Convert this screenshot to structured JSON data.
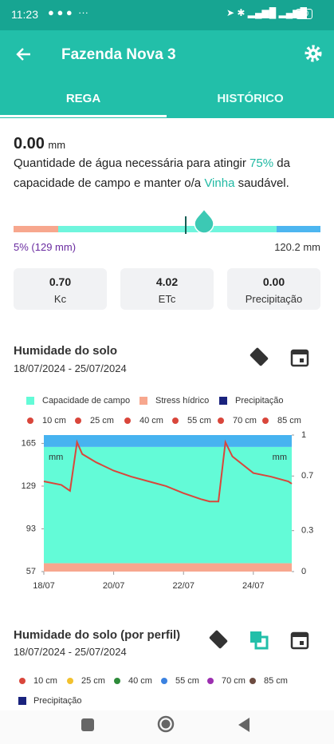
{
  "status_bar": {
    "time": "11:23",
    "battery": "30"
  },
  "header": {
    "title": "Fazenda Nova 3"
  },
  "tabs": [
    "REGA",
    "HISTÓRICO"
  ],
  "summary": {
    "value": "0.00",
    "unit": "mm",
    "text_parts": [
      "Quantidade de água necessária para atingir ",
      "75%",
      " da capacidade de campo e manter o/a ",
      "Vinha",
      " saudável."
    ]
  },
  "slider": {
    "left_label": "5% (129 mm)",
    "right_label": "120.2 mm"
  },
  "stats": [
    {
      "value": "0.70",
      "label": "Kc"
    },
    {
      "value": "4.02",
      "label": "ETc"
    },
    {
      "value": "0.00",
      "label": "Precipitação"
    }
  ],
  "chart_data": {
    "type": "line",
    "title": "Humidade do solo",
    "subtitle": "18/07/2024 - 25/07/2024",
    "x": [
      0,
      0.5,
      0.75,
      0.95,
      1.1,
      1.5,
      2,
      2.5,
      3,
      3.5,
      4,
      4.5,
      4.75,
      5.0,
      5.2,
      5.4,
      6,
      6.5,
      7,
      7.1
    ],
    "series": [
      {
        "name": "10 cm",
        "color": "#d9463b",
        "values": [
          133,
          130,
          125,
          166,
          156,
          149,
          142,
          137,
          133,
          129,
          123,
          118,
          116,
          116,
          166,
          154,
          140,
          137,
          133,
          131
        ]
      }
    ],
    "line_legend": [
      "25 cm",
      "40 cm",
      "55 cm",
      "70 cm",
      "85 cm"
    ],
    "bands": [
      {
        "name": "Capacidade de campo",
        "color": "#63fbd7",
        "from": 64,
        "to": 162
      },
      {
        "name": "Stress hídrico",
        "color": "#f7a78e",
        "from": 57,
        "to": 64
      },
      {
        "color": "#47b3f0",
        "from": 162,
        "to": 172
      }
    ],
    "precip_legend": {
      "name": "Precipitação",
      "color": "#1a237e"
    },
    "annotations": [
      "mm",
      "mm"
    ],
    "xlim": [
      0,
      7.1
    ],
    "xticks": [
      {
        "value": 0,
        "label": "18/07"
      },
      {
        "value": 2,
        "label": "20/07"
      },
      {
        "value": 4,
        "label": "22/07"
      },
      {
        "value": 6,
        "label": "24/07"
      }
    ],
    "ylim": [
      57,
      172
    ],
    "yticks": [
      57,
      93,
      129,
      165
    ],
    "y2lim": [
      0,
      1
    ],
    "y2ticks": [
      0,
      0.3,
      0.7,
      1
    ]
  },
  "chart2": {
    "title": "Humidade do solo (por perfil)",
    "subtitle": "18/07/2024 - 25/07/2024",
    "legend": [
      {
        "name": "10 cm",
        "color": "#d9463b"
      },
      {
        "name": "25 cm",
        "color": "#f2c12e"
      },
      {
        "name": "40 cm",
        "color": "#2e8b3a"
      },
      {
        "name": "55 cm",
        "color": "#3b82e0"
      },
      {
        "name": "70 cm",
        "color": "#9c2fb0"
      },
      {
        "name": "85 cm",
        "color": "#6d4c41"
      }
    ],
    "precip_legend": {
      "name": "Precipitação",
      "color": "#1a237e"
    }
  }
}
